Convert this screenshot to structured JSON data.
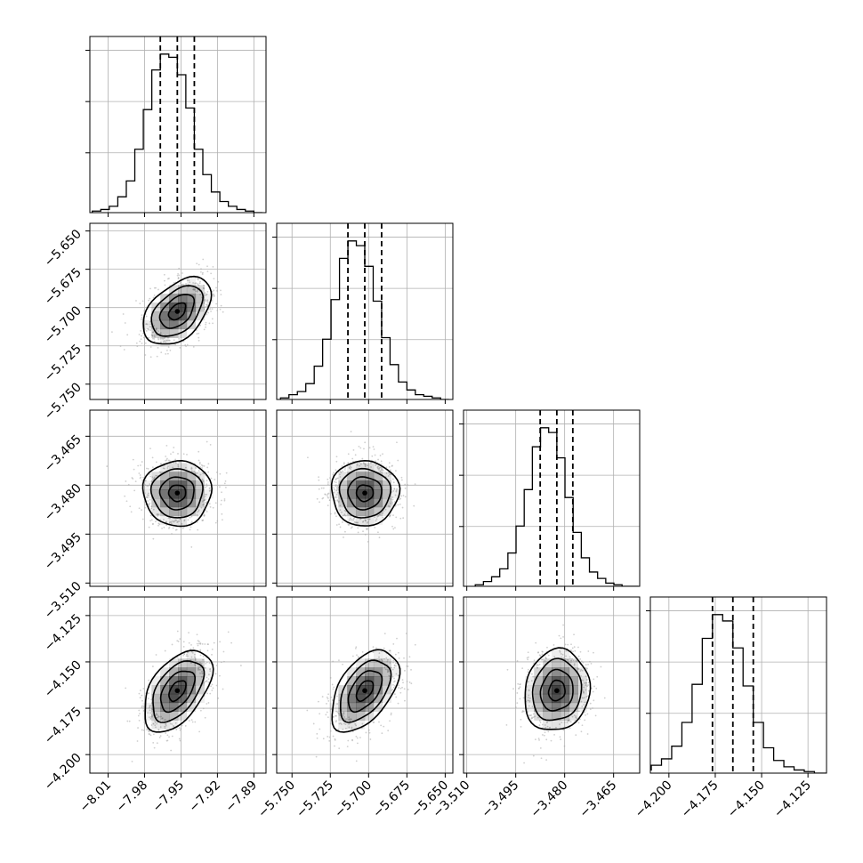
{
  "chart_data": {
    "type": "corner",
    "parameters": [
      {
        "ticks": [
          -8.01,
          -7.98,
          -7.95,
          -7.92,
          -7.89
        ],
        "tick_labels": [
          "−8.01",
          "−7.98",
          "−7.95",
          "−7.92",
          "−7.89"
        ],
        "range": [
          -8.025,
          -7.88
        ],
        "quantiles": [
          -7.967,
          -7.953,
          -7.939
        ],
        "mean": -7.953,
        "sd": 0.014,
        "hist_counts": [
          1,
          2,
          4,
          10,
          20,
          40,
          65,
          90,
          100,
          98,
          87,
          66,
          40,
          24,
          13,
          7,
          4,
          2,
          1,
          0
        ]
      },
      {
        "ticks": [
          -5.75,
          -5.725,
          -5.7,
          -5.675,
          -5.65
        ],
        "tick_labels": [
          "−5.750",
          "−5.725",
          "−5.700",
          "−5.675",
          "−5.650"
        ],
        "range": [
          -5.76,
          -5.645
        ],
        "quantiles": [
          -5.7135,
          -5.7025,
          -5.6915
        ],
        "mean": -5.7025,
        "sd": 0.011,
        "hist_counts": [
          1,
          3,
          5,
          10,
          21,
          38,
          63,
          89,
          100,
          97,
          84,
          62,
          39,
          22,
          11,
          6,
          3,
          2,
          1,
          0
        ]
      },
      {
        "ticks": [
          -3.51,
          -3.495,
          -3.48,
          -3.465
        ],
        "tick_labels": [
          "−3.510",
          "−3.495",
          "−3.480",
          "−3.465"
        ],
        "range": [
          -3.511,
          -3.457
        ],
        "quantiles": [
          -3.4875,
          -3.4824,
          -3.4775
        ],
        "mean": -3.4824,
        "sd": 0.005,
        "hist_counts": [
          1,
          3,
          6,
          11,
          21,
          38,
          61,
          88,
          100,
          97,
          81,
          56,
          34,
          18,
          9,
          5,
          2,
          1,
          0,
          0
        ]
      },
      {
        "ticks": [
          -4.2,
          -4.175,
          -4.15,
          -4.125
        ],
        "tick_labels": [
          "−4.200",
          "−4.175",
          "−4.150",
          "−4.125"
        ],
        "range": [
          -4.21,
          -4.115
        ],
        "quantiles": [
          -4.1765,
          -4.1655,
          -4.1545
        ],
        "mean": -4.1655,
        "sd": 0.011,
        "hist_counts": [
          1,
          2,
          5,
          9,
          17,
          32,
          56,
          85,
          100,
          96,
          79,
          55,
          32,
          16,
          8,
          4,
          2,
          1,
          0,
          0
        ]
      }
    ],
    "correlations": {
      "1-0": 0.45,
      "2-0": 0.0,
      "2-1": 0.0,
      "3-0": 0.5,
      "3-1": 0.5,
      "3-2": 0.1
    },
    "contour_levels_sigma": [
      0.5,
      1.0,
      1.5,
      2.0
    ],
    "grid": true,
    "colors": {
      "line": "#000000",
      "points": "#a8a8a8",
      "density": "#000000",
      "grid": "#b0b0b0"
    }
  }
}
